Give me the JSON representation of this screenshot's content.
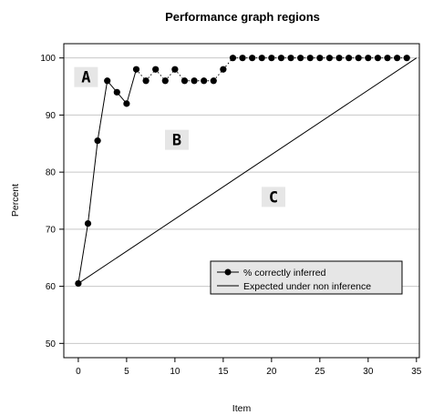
{
  "chart_data": {
    "type": "line",
    "title": "Performance graph regions",
    "xlabel": "Item",
    "ylabel": "Percent",
    "xlim": [
      -1.5,
      35.3
    ],
    "ylim": [
      47.5,
      102.5
    ],
    "x_ticks": [
      0,
      5,
      10,
      15,
      20,
      25,
      30,
      35
    ],
    "y_ticks": [
      50,
      60,
      70,
      80,
      90,
      100
    ],
    "grid": "horizontal",
    "legend_position": "lower-right",
    "region_labels": [
      {
        "text": "A",
        "x": 0.8,
        "y": 96.5
      },
      {
        "text": "B",
        "x": 10.2,
        "y": 85.5
      },
      {
        "text": "C",
        "x": 20.2,
        "y": 75.5
      }
    ],
    "series": [
      {
        "name": "% correctly inferred",
        "style": "line-points",
        "x": [
          0,
          1,
          2,
          3,
          4,
          5,
          6,
          7,
          8,
          9,
          10,
          11,
          12,
          13,
          14,
          15,
          16,
          17,
          18,
          19,
          20,
          21,
          22,
          23,
          24,
          25,
          26,
          27,
          28,
          29,
          30,
          31,
          32,
          33,
          34
        ],
        "y": [
          60.5,
          71,
          85.5,
          96,
          94,
          92,
          98,
          96,
          98,
          96,
          98,
          96,
          96,
          96,
          96,
          98,
          100,
          100,
          100,
          100,
          100,
          100,
          100,
          100,
          100,
          100,
          100,
          100,
          100,
          100,
          100,
          100,
          100,
          100,
          100
        ],
        "segment_styles": [
          "solid",
          "solid",
          "solid",
          "solid",
          "solid",
          "solid",
          "dotted",
          "dotted",
          "dotted",
          "dotted",
          "dotted",
          "dotted",
          "dotted",
          "dotted",
          "dotted",
          "dotted",
          "dotted",
          "dotted",
          "dotted",
          "dotted",
          "dotted",
          "dotted",
          "dotted",
          "dotted",
          "dotted",
          "dotted",
          "dotted",
          "dotted",
          "dotted",
          "dotted",
          "dotted",
          "dotted",
          "dotted",
          "dotted"
        ]
      },
      {
        "name": "Expected under non inference",
        "style": "line",
        "x": [
          0,
          35
        ],
        "y": [
          60.5,
          100
        ]
      }
    ]
  }
}
